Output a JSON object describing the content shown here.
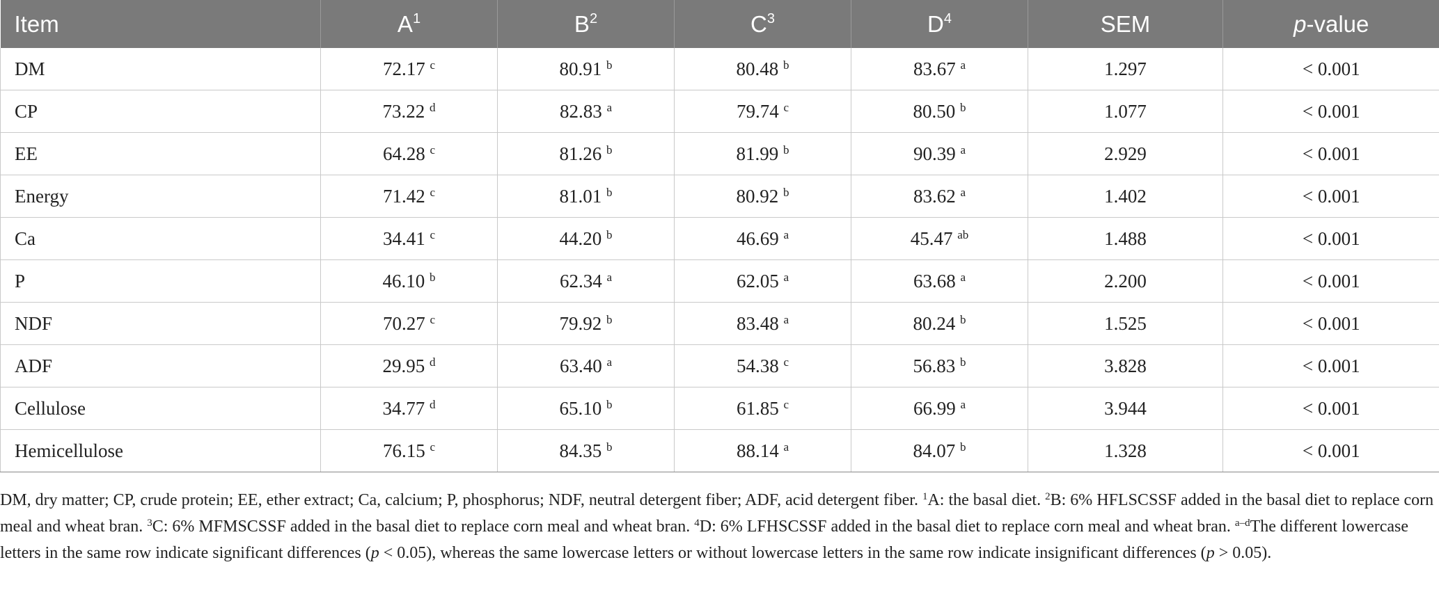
{
  "table": {
    "headers": [
      {
        "text": "Item",
        "sup": ""
      },
      {
        "text": "A",
        "sup": "1"
      },
      {
        "text": "B",
        "sup": "2"
      },
      {
        "text": "C",
        "sup": "3"
      },
      {
        "text": "D",
        "sup": "4"
      },
      {
        "text": "SEM",
        "sup": ""
      },
      {
        "italic": "p",
        "text": "-value",
        "sup": ""
      }
    ],
    "rows": [
      {
        "item": "DM",
        "a": "72.17",
        "a_sup": "c",
        "b": "80.91",
        "b_sup": "b",
        "c": "80.48",
        "c_sup": "b",
        "d": "83.67",
        "d_sup": "a",
        "sem": "1.297",
        "p": "< 0.001"
      },
      {
        "item": "CP",
        "a": "73.22",
        "a_sup": "d",
        "b": "82.83",
        "b_sup": "a",
        "c": "79.74",
        "c_sup": "c",
        "d": "80.50",
        "d_sup": "b",
        "sem": "1.077",
        "p": "< 0.001"
      },
      {
        "item": "EE",
        "a": "64.28",
        "a_sup": "c",
        "b": "81.26",
        "b_sup": "b",
        "c": "81.99",
        "c_sup": "b",
        "d": "90.39",
        "d_sup": "a",
        "sem": "2.929",
        "p": "< 0.001"
      },
      {
        "item": "Energy",
        "a": "71.42",
        "a_sup": "c",
        "b": "81.01",
        "b_sup": "b",
        "c": "80.92",
        "c_sup": "b",
        "d": "83.62",
        "d_sup": "a",
        "sem": "1.402",
        "p": "< 0.001"
      },
      {
        "item": "Ca",
        "a": "34.41",
        "a_sup": "c",
        "b": "44.20",
        "b_sup": "b",
        "c": "46.69",
        "c_sup": "a",
        "d": "45.47",
        "d_sup": "ab",
        "sem": "1.488",
        "p": "< 0.001"
      },
      {
        "item": "P",
        "a": "46.10",
        "a_sup": "b",
        "b": "62.34",
        "b_sup": "a",
        "c": "62.05",
        "c_sup": "a",
        "d": "63.68",
        "d_sup": "a",
        "sem": "2.200",
        "p": "< 0.001"
      },
      {
        "item": "NDF",
        "a": "70.27",
        "a_sup": "c",
        "b": "79.92",
        "b_sup": "b",
        "c": "83.48",
        "c_sup": "a",
        "d": "80.24",
        "d_sup": "b",
        "sem": "1.525",
        "p": "< 0.001"
      },
      {
        "item": "ADF",
        "a": "29.95",
        "a_sup": "d",
        "b": "63.40",
        "b_sup": "a",
        "c": "54.38",
        "c_sup": "c",
        "d": "56.83",
        "d_sup": "b",
        "sem": "3.828",
        "p": "< 0.001"
      },
      {
        "item": "Cellulose",
        "a": "34.77",
        "a_sup": "d",
        "b": "65.10",
        "b_sup": "b",
        "c": "61.85",
        "c_sup": "c",
        "d": "66.99",
        "d_sup": "a",
        "sem": "3.944",
        "p": "< 0.001"
      },
      {
        "item": "Hemicellulose",
        "a": "76.15",
        "a_sup": "c",
        "b": "84.35",
        "b_sup": "b",
        "c": "88.14",
        "c_sup": "a",
        "d": "84.07",
        "d_sup": "b",
        "sem": "1.328",
        "p": "< 0.001"
      }
    ]
  },
  "footnote": {
    "abbrev": "DM, dry matter; CP, crude protein; EE, ether extract; Ca, calcium; P, phosphorus; NDF, neutral detergent fiber; ADF, acid detergent fiber. ",
    "n1_sup": "1",
    "n1": "A: the basal diet. ",
    "n2_sup": "2",
    "n2": "B: 6% HFLSCSSF added in the basal diet to replace corn meal and wheat bran. ",
    "n3_sup": "3",
    "n3": "C: 6% MFMSCSSF added in the basal diet to replace corn meal and wheat bran. ",
    "n4_sup": "4",
    "n4": "D: 6% LFHSCSSF added in the basal diet to replace corn meal and wheat bran. ",
    "n5_sup": "a–d",
    "n5_part1": "The different lowercase letters in the same row indicate significant differences (",
    "n5_p1": "p",
    "n5_part2": " < 0.05), whereas the same lowercase letters or without lowercase letters in the same row indicate insignificant differences (",
    "n5_p2": "p",
    "n5_part3": " > 0.05)."
  }
}
